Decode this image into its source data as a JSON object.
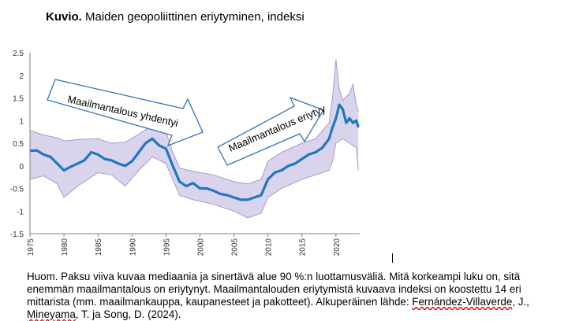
{
  "title": {
    "bold": "Kuvio.",
    "text": "Maiden geopoliittinen eriytyminen, indeksi"
  },
  "colors": {
    "line": "#1f77c0",
    "band_fill": "#d9d4ec",
    "band_edge": "#a79bd0",
    "arrow_fill": "#ffffff",
    "arrow_stroke": "#2e75b6",
    "axis": "#808080"
  },
  "chart_data": {
    "type": "area",
    "title": "",
    "xlabel": "",
    "ylabel": "",
    "xlim": [
      1975,
      2023.5
    ],
    "ylim": [
      -1.5,
      2.5
    ],
    "grid": false,
    "y_ticks": [
      "2.5",
      "2",
      "1.5",
      "1",
      "0.5",
      "0",
      "-0.5",
      "-1",
      "-1.5"
    ],
    "x_ticks": [
      "1975",
      "1980",
      "1985",
      "1990",
      "1995",
      "2000",
      "2005",
      "2010",
      "2015",
      "2020"
    ],
    "series": [
      {
        "role": "median",
        "x": [
          1975,
          1976,
          1977,
          1978,
          1979,
          1980,
          1981,
          1982,
          1983,
          1984,
          1985,
          1986,
          1987,
          1988,
          1989,
          1990,
          1991,
          1992,
          1993,
          1994,
          1995,
          1996,
          1997,
          1998,
          1999,
          2000,
          2001,
          2002,
          2003,
          2004,
          2005,
          2006,
          2007,
          2008,
          2009,
          2010,
          2011,
          2012,
          2013,
          2014,
          2015,
          2016,
          2017,
          2018,
          2019,
          2019.5,
          2020,
          2020.5,
          2021,
          2021.5,
          2022,
          2022.5,
          2023,
          2023.3
        ],
        "y": [
          0.33,
          0.34,
          0.25,
          0.2,
          0.05,
          -0.1,
          -0.02,
          0.05,
          0.12,
          0.3,
          0.25,
          0.15,
          0.12,
          0.05,
          0.0,
          0.1,
          0.3,
          0.5,
          0.6,
          0.45,
          0.38,
          0.0,
          -0.35,
          -0.45,
          -0.38,
          -0.5,
          -0.5,
          -0.55,
          -0.62,
          -0.65,
          -0.7,
          -0.75,
          -0.75,
          -0.7,
          -0.65,
          -0.3,
          -0.15,
          -0.1,
          0.0,
          0.05,
          0.15,
          0.25,
          0.3,
          0.4,
          0.6,
          0.85,
          1.05,
          1.35,
          1.25,
          0.95,
          1.05,
          0.95,
          1.0,
          0.85
        ]
      },
      {
        "role": "upper_90",
        "x": [
          1975,
          1977,
          1979,
          1980,
          1982,
          1985,
          1987,
          1989,
          1991,
          1992,
          1993,
          1995,
          1996,
          1997,
          1999,
          2002,
          2005,
          2007,
          2009,
          2010,
          2012,
          2015,
          2017,
          2019,
          2019.5,
          2020,
          2020.5,
          2021,
          2022,
          2022.5,
          2023,
          2023.3
        ],
        "y": [
          0.78,
          0.68,
          0.62,
          0.55,
          0.58,
          0.6,
          0.5,
          0.52,
          0.7,
          0.8,
          0.9,
          0.75,
          0.3,
          -0.05,
          -0.12,
          -0.2,
          -0.35,
          -0.4,
          -0.3,
          0.1,
          0.3,
          0.5,
          0.6,
          0.95,
          1.5,
          2.35,
          1.7,
          1.45,
          1.6,
          1.8,
          1.35,
          1.2
        ]
      },
      {
        "role": "lower_90",
        "x": [
          1975,
          1977,
          1979,
          1980,
          1982,
          1985,
          1987,
          1989,
          1991,
          1992,
          1993,
          1995,
          1996,
          1997,
          1999,
          2002,
          2005,
          2007,
          2009,
          2010,
          2012,
          2015,
          2017,
          2019,
          2019.5,
          2020,
          2020.5,
          2021,
          2022,
          2022.5,
          2023,
          2023.3
        ],
        "y": [
          -0.3,
          -0.22,
          -0.4,
          -0.7,
          -0.45,
          -0.15,
          -0.2,
          -0.45,
          -0.1,
          0.05,
          0.2,
          0.05,
          -0.3,
          -0.65,
          -0.75,
          -0.85,
          -1.0,
          -1.15,
          -1.05,
          -0.7,
          -0.5,
          -0.3,
          -0.2,
          -0.1,
          0.1,
          0.5,
          0.55,
          0.6,
          0.5,
          0.45,
          0.4,
          -0.1
        ]
      }
    ]
  },
  "annotations": [
    {
      "id": "arrow-1",
      "label": "Maailmantalous yhdentyi"
    },
    {
      "id": "arrow-2",
      "label": "Maailmantalous eriytyy"
    }
  ],
  "note": {
    "text": "Huom. Paksu viiva kuvaa mediaania ja sinertävä alue 90 %:n luottamusväliä. Mitä korkeampi luku on, sitä enemmän maailmantalous on eriytynyt. Maailmantalouden eriytymistä kuvaava indeksi on koostettu 14 eri mittarista (mm. maailmankauppa, kaupanesteet ja pakotteet). Alkuperäinen lähde: ",
    "source1": "Fernández-Villaverde",
    "mid": ", J., ",
    "source2": "Mineyama",
    "end": ", T. ja Song, D. (2024)."
  }
}
